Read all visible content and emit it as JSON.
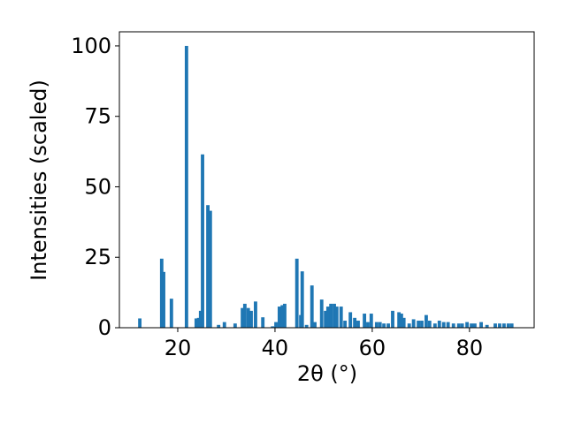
{
  "chart_data": {
    "type": "bar",
    "xlabel": "2θ (°)",
    "ylabel": "Intensities (scaled)",
    "color": "#1f77b4",
    "x": [
      12.2,
      16.7,
      17.1,
      18.7,
      21.8,
      23.8,
      24.3,
      24.7,
      25.1,
      26.2,
      26.7,
      28.4,
      29.6,
      31.8,
      33.3,
      33.8,
      34.5,
      35.1,
      36.0,
      37.5,
      39.5,
      40.2,
      40.9,
      41.5,
      42.0,
      44.5,
      45.3,
      45.6,
      46.5,
      47.6,
      48.2,
      49.6,
      50.4,
      50.9,
      51.5,
      52.2,
      52.7,
      53.6,
      54.4,
      55.5,
      56.4,
      57.1,
      58.4,
      59.1,
      59.8,
      60.9,
      61.6,
      62.4,
      63.3,
      64.2,
      65.5,
      66.0,
      66.5,
      67.6,
      68.5,
      69.5,
      70.2,
      71.1,
      71.8,
      72.9,
      73.8,
      74.7,
      75.6,
      76.7,
      77.8,
      78.5,
      79.5,
      80.4,
      81.1,
      82.4,
      83.6,
      85.3,
      86.2,
      87.1,
      88.0,
      88.7
    ],
    "values": [
      3.3,
      24.5,
      19.8,
      10.3,
      100,
      3.3,
      3.5,
      6,
      61.5,
      43.5,
      41.5,
      1,
      2,
      1.5,
      7,
      8.5,
      7,
      6,
      9.3,
      3.7,
      0.5,
      2,
      7.5,
      8,
      8.5,
      24.5,
      4.5,
      20,
      1,
      15,
      2,
      10,
      6,
      7.5,
      8.5,
      8.5,
      7.5,
      7.5,
      2.5,
      5.5,
      3.5,
      2.5,
      5,
      2,
      5,
      2,
      2,
      1.5,
      1.5,
      6,
      5.5,
      5,
      3.5,
      1.5,
      3,
      2.5,
      2.5,
      4.5,
      2.5,
      1.5,
      2.5,
      2,
      2,
      1.5,
      1.5,
      1.5,
      2,
      1.5,
      1.5,
      2,
      1,
      1.5,
      1.5,
      1.5,
      1.5,
      1.5
    ],
    "xlim": [
      8,
      93.3
    ],
    "ylim": [
      0,
      105
    ],
    "xticks": [
      20,
      40,
      60,
      80
    ],
    "yticks": [
      0,
      25,
      50,
      75,
      100
    ]
  }
}
